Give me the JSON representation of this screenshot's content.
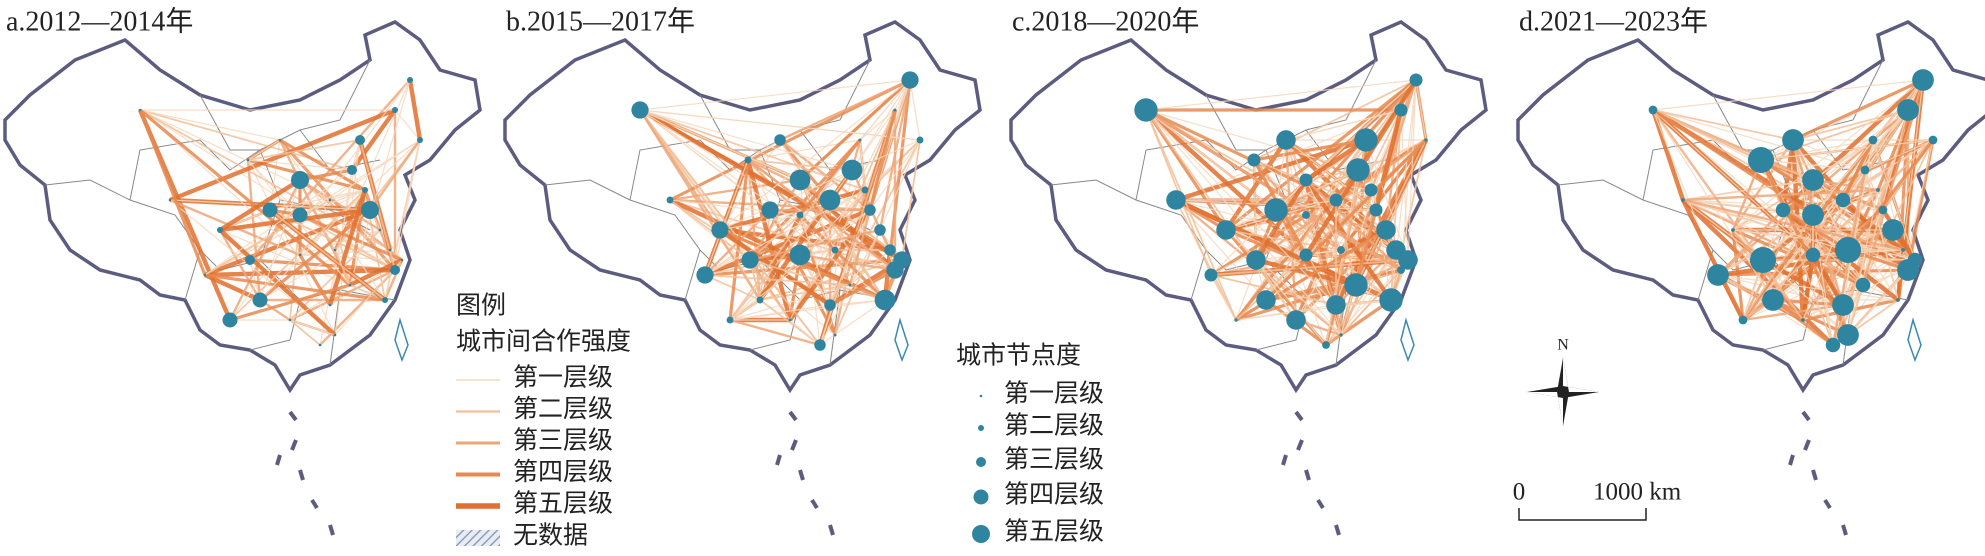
{
  "panels": [
    {
      "title": "a.2012—2014年"
    },
    {
      "title": "b.2015—2017年"
    },
    {
      "title": "c.2018—2020年"
    },
    {
      "title": "d.2021—2023年"
    }
  ],
  "legend": {
    "title": "图例",
    "link_title": "城市间合作强度",
    "link_levels": [
      "第一层级",
      "第二层级",
      "第三层级",
      "第四层级",
      "第五层级"
    ],
    "no_data": "无数据"
  },
  "node_legend": {
    "title": "城市节点度",
    "levels": [
      "第一层级",
      "第二层级",
      "第三层级",
      "第四层级",
      "第五层级"
    ]
  },
  "north": "N",
  "scale_bar": {
    "start": "0",
    "end": "1000 km"
  }
}
